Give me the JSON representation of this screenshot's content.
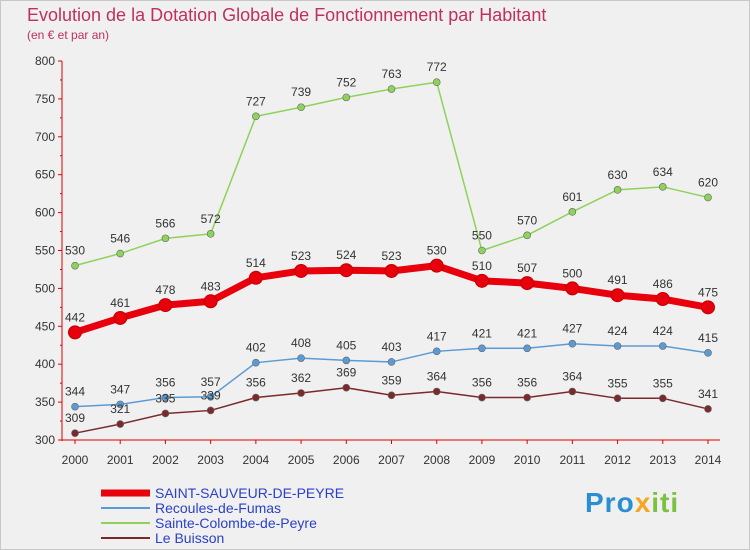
{
  "header": {
    "title": "Evolution de la Dotation Globale de Fonctionnement par Habitant",
    "subtitle": "(en € et par an)"
  },
  "logo": {
    "text": "Proxiti",
    "colors": [
      "#2a8fd0",
      "#f5a623",
      "#7cc242"
    ]
  },
  "chart_data": {
    "type": "line",
    "x": [
      2000,
      2001,
      2002,
      2003,
      2004,
      2005,
      2006,
      2007,
      2008,
      2009,
      2010,
      2011,
      2012,
      2013,
      2014
    ],
    "ylim": [
      300,
      800
    ],
    "yticks": [
      300,
      350,
      400,
      450,
      500,
      550,
      600,
      650,
      700,
      750,
      800
    ],
    "grid": false,
    "legend_position": "bottom-left",
    "series": [
      {
        "name": "SAINT-SAUVEUR-DE-PEYRE",
        "color": "#e8000d",
        "emphasis": true,
        "values": [
          442,
          461,
          478,
          483,
          514,
          523,
          524,
          523,
          530,
          510,
          507,
          500,
          491,
          486,
          475
        ]
      },
      {
        "name": "Recoules-de-Fumas",
        "color": "#5b9bd5",
        "emphasis": false,
        "values": [
          344,
          347,
          356,
          357,
          402,
          408,
          405,
          403,
          417,
          421,
          421,
          427,
          424,
          424,
          415
        ]
      },
      {
        "name": "Sainte-Colombe-de-Peyre",
        "color": "#8ed25a",
        "emphasis": false,
        "values": [
          530,
          546,
          566,
          572,
          727,
          739,
          752,
          763,
          772,
          550,
          570,
          601,
          630,
          634,
          620
        ]
      },
      {
        "name": "Le Buisson",
        "color": "#7a2a2a",
        "emphasis": false,
        "values": [
          309,
          321,
          335,
          339,
          356,
          362,
          369,
          359,
          364,
          356,
          356,
          364,
          355,
          355,
          341
        ]
      }
    ]
  }
}
